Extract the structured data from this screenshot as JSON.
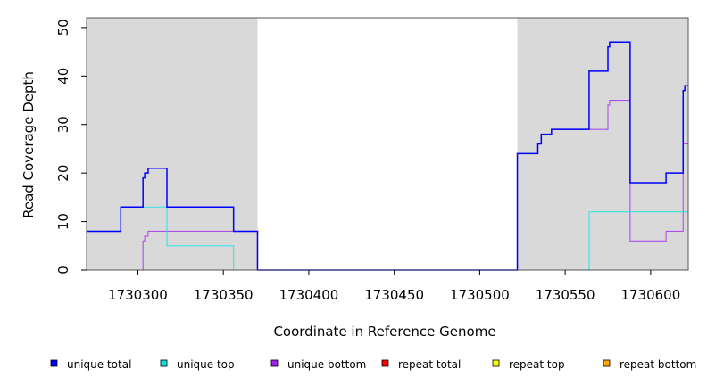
{
  "chart_data": {
    "type": "line",
    "step": true,
    "xlabel": "Coordinate in Reference Genome",
    "ylabel": "Read Coverage Depth",
    "xlim": [
      1730270,
      1730622
    ],
    "ylim": [
      0,
      52
    ],
    "x_ticks": [
      1730300,
      1730350,
      1730400,
      1730450,
      1730500,
      1730550,
      1730600
    ],
    "y_ticks": [
      0,
      10,
      20,
      30,
      40,
      50
    ],
    "shaded_regions": [
      {
        "x0": 1730270,
        "x1": 1730370,
        "color": "#d9d9d9"
      },
      {
        "x0": 1730522,
        "x1": 1730622,
        "color": "#d9d9d9"
      }
    ],
    "legend_position": "bottom",
    "series": [
      {
        "name": "unique total",
        "color": "#0000ff",
        "points": [
          [
            1730270,
            8
          ],
          [
            1730290,
            13
          ],
          [
            1730303,
            19
          ],
          [
            1730304,
            20
          ],
          [
            1730306,
            21
          ],
          [
            1730317,
            13
          ],
          [
            1730356,
            8
          ],
          [
            1730370,
            0
          ],
          [
            1730522,
            24
          ],
          [
            1730534,
            26
          ],
          [
            1730536,
            28
          ],
          [
            1730542,
            29
          ],
          [
            1730564,
            41
          ],
          [
            1730575,
            46
          ],
          [
            1730576,
            47
          ],
          [
            1730588,
            18
          ],
          [
            1730609,
            20
          ],
          [
            1730619,
            37
          ],
          [
            1730620,
            38
          ],
          [
            1730622,
            38
          ]
        ]
      },
      {
        "name": "unique top",
        "color": "#00e5e5",
        "points": [
          [
            1730270,
            8
          ],
          [
            1730290,
            13
          ],
          [
            1730317,
            5
          ],
          [
            1730356,
            0
          ],
          [
            1730564,
            12
          ],
          [
            1730622,
            12
          ]
        ]
      },
      {
        "name": "unique bottom",
        "color": "#a020f0",
        "points": [
          [
            1730270,
            0
          ],
          [
            1730303,
            6
          ],
          [
            1730304,
            7
          ],
          [
            1730306,
            8
          ],
          [
            1730370,
            0
          ],
          [
            1730522,
            24
          ],
          [
            1730534,
            26
          ],
          [
            1730536,
            28
          ],
          [
            1730542,
            29
          ],
          [
            1730575,
            34
          ],
          [
            1730576,
            35
          ],
          [
            1730588,
            6
          ],
          [
            1730609,
            8
          ],
          [
            1730619,
            26
          ],
          [
            1730622,
            26
          ]
        ]
      },
      {
        "name": "repeat total",
        "color": "#ff0000",
        "points": [
          [
            1730270,
            0
          ],
          [
            1730622,
            0
          ]
        ]
      },
      {
        "name": "repeat top",
        "color": "#ffff00",
        "points": [
          [
            1730270,
            0
          ],
          [
            1730622,
            0
          ]
        ]
      },
      {
        "name": "repeat bottom",
        "color": "#ffa500",
        "points": [
          [
            1730270,
            0
          ],
          [
            1730622,
            0
          ]
        ]
      }
    ]
  }
}
